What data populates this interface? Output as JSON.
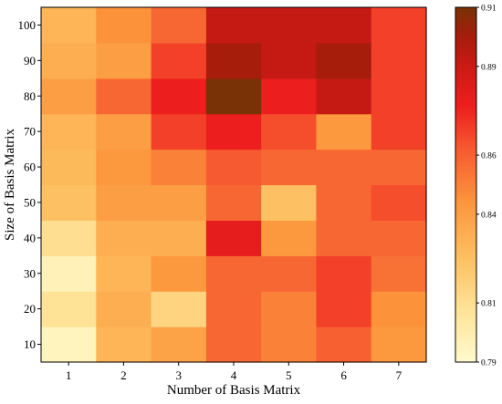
{
  "chart_data": {
    "type": "heatmap",
    "xlabel": "Number of Basis Matrix",
    "ylabel": "Size of Basis Matrix",
    "x": [
      1,
      2,
      3,
      4,
      5,
      6,
      7
    ],
    "y": [
      10,
      20,
      30,
      40,
      50,
      60,
      70,
      80,
      90,
      100
    ],
    "colorbar": {
      "min": 0.79,
      "max": 0.91,
      "tick_labels": [
        "0.91",
        "0.89",
        "0.86",
        "0.84",
        "0.81",
        "0.79"
      ],
      "tick_values": [
        0.91,
        0.89,
        0.86,
        0.84,
        0.81,
        0.79
      ],
      "colormap": "YlOrRd-like, light yellow (low) to dark brown (high)"
    },
    "values": [
      [
        0.795,
        0.83,
        0.838,
        0.858,
        0.85,
        0.86,
        0.843
      ],
      [
        0.808,
        0.833,
        0.815,
        0.858,
        0.85,
        0.868,
        0.845
      ],
      [
        0.797,
        0.83,
        0.843,
        0.858,
        0.858,
        0.868,
        0.855
      ],
      [
        0.81,
        0.833,
        0.833,
        0.88,
        0.843,
        0.858,
        0.858
      ],
      [
        0.825,
        0.84,
        0.84,
        0.858,
        0.825,
        0.858,
        0.865
      ],
      [
        0.828,
        0.843,
        0.85,
        0.862,
        0.858,
        0.858,
        0.858
      ],
      [
        0.83,
        0.84,
        0.868,
        0.877,
        0.865,
        0.843,
        0.868
      ],
      [
        0.84,
        0.858,
        0.877,
        0.91,
        0.877,
        0.892,
        0.868
      ],
      [
        0.833,
        0.84,
        0.868,
        0.9,
        0.892,
        0.9,
        0.868
      ],
      [
        0.83,
        0.845,
        0.858,
        0.892,
        0.892,
        0.892,
        0.868
      ]
    ]
  }
}
